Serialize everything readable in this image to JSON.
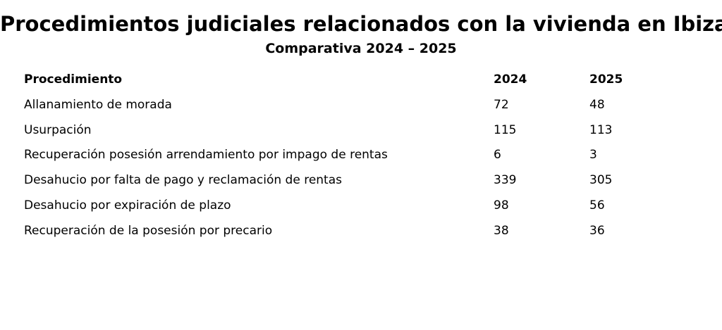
{
  "chart_data": {
    "type": "table",
    "title": "Procedimientos judiciales relacionados con la vivienda en Ibiza",
    "subtitle": "Comparativa 2024 – 2025",
    "columns": [
      "Procedimiento",
      "2024",
      "2025"
    ],
    "rows": [
      [
        "Allanamiento de morada",
        "72",
        "48"
      ],
      [
        "Usurpación",
        "115",
        "113"
      ],
      [
        "Recuperación posesión arrendamiento por impago de rentas",
        "6",
        "3"
      ],
      [
        "Desahucio por falta de pago y reclamación de rentas",
        "339",
        "305"
      ],
      [
        "Desahucio por expiración de plazo",
        "98",
        "56"
      ],
      [
        "Recuperación de la posesión por precario",
        "38",
        "36"
      ]
    ]
  }
}
